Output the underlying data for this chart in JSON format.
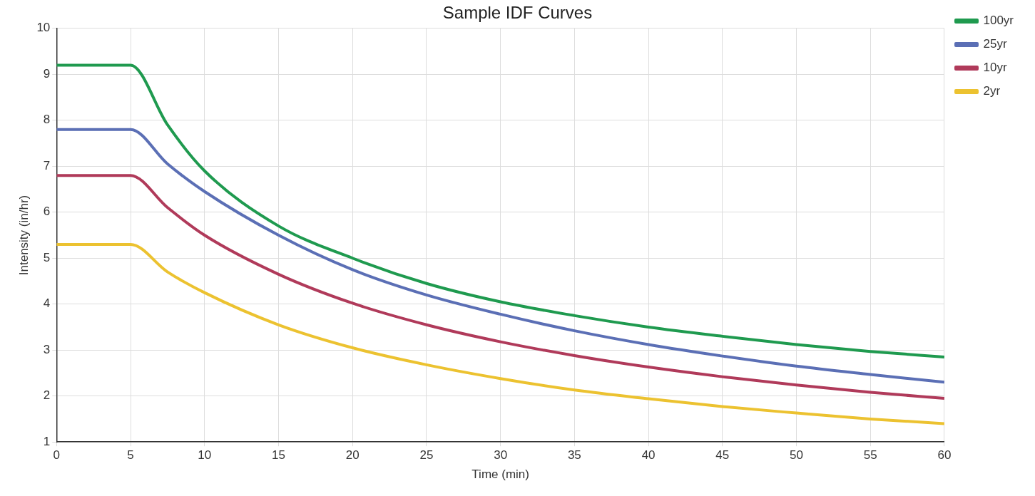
{
  "chart_data": {
    "type": "line",
    "title": "Sample IDF Curves",
    "xlabel": "Time (min)",
    "ylabel": "Intensity (in/hr)",
    "x": [
      0,
      5,
      7.5,
      10,
      15,
      20,
      25,
      30,
      35,
      40,
      45,
      50,
      55,
      60
    ],
    "series": [
      {
        "name": "100yr",
        "color": "#1f9a4f",
        "values": [
          9.2,
          9.2,
          7.9,
          6.9,
          5.7,
          5.0,
          4.45,
          4.05,
          3.75,
          3.5,
          3.3,
          3.12,
          2.97,
          2.85
        ]
      },
      {
        "name": "25yr",
        "color": "#5b6fb5",
        "values": [
          7.8,
          7.8,
          7.05,
          6.45,
          5.5,
          4.75,
          4.2,
          3.78,
          3.42,
          3.12,
          2.87,
          2.65,
          2.47,
          2.3
        ]
      },
      {
        "name": "10yr",
        "color": "#b03a5a",
        "values": [
          6.8,
          6.8,
          6.1,
          5.5,
          4.65,
          4.02,
          3.55,
          3.18,
          2.88,
          2.63,
          2.42,
          2.24,
          2.08,
          1.95
        ]
      },
      {
        "name": "2yr",
        "color": "#ecc230",
        "values": [
          5.3,
          5.3,
          4.7,
          4.25,
          3.55,
          3.05,
          2.68,
          2.38,
          2.13,
          1.94,
          1.77,
          1.63,
          1.5,
          1.4
        ]
      }
    ],
    "xlim": [
      0,
      60
    ],
    "xticks": [
      0,
      5,
      10,
      15,
      20,
      25,
      30,
      35,
      40,
      45,
      50,
      55,
      60
    ],
    "ylim": [
      1,
      10
    ],
    "yticks": [
      1,
      2,
      3,
      4,
      5,
      6,
      7,
      8,
      9,
      10
    ],
    "grid": true,
    "legend": "right",
    "marker": "none",
    "line_style": "solid"
  }
}
